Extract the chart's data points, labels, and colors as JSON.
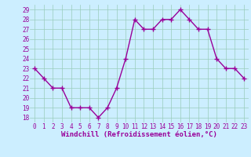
{
  "x": [
    0,
    1,
    2,
    3,
    4,
    5,
    6,
    7,
    8,
    9,
    10,
    11,
    12,
    13,
    14,
    15,
    16,
    17,
    18,
    19,
    20,
    21,
    22,
    23
  ],
  "y": [
    23,
    22,
    21,
    21,
    19,
    19,
    19,
    18,
    19,
    21,
    24,
    28,
    27,
    27,
    28,
    28,
    29,
    28,
    27,
    27,
    24,
    23,
    23,
    22
  ],
  "line_color": "#990099",
  "marker": "+",
  "marker_size": 4,
  "marker_linewidth": 1.0,
  "bg_color": "#cceeff",
  "grid_color": "#99ccbb",
  "xlabel": "Windchill (Refroidissement éolien,°C)",
  "xlabel_fontsize": 6.5,
  "tick_fontsize": 5.5,
  "ylim_min": 17.5,
  "ylim_max": 29.5,
  "yticks": [
    18,
    19,
    20,
    21,
    22,
    23,
    24,
    25,
    26,
    27,
    28,
    29
  ],
  "xticks": [
    0,
    1,
    2,
    3,
    4,
    5,
    6,
    7,
    8,
    9,
    10,
    11,
    12,
    13,
    14,
    15,
    16,
    17,
    18,
    19,
    20,
    21,
    22,
    23
  ],
  "line_width": 1.0
}
